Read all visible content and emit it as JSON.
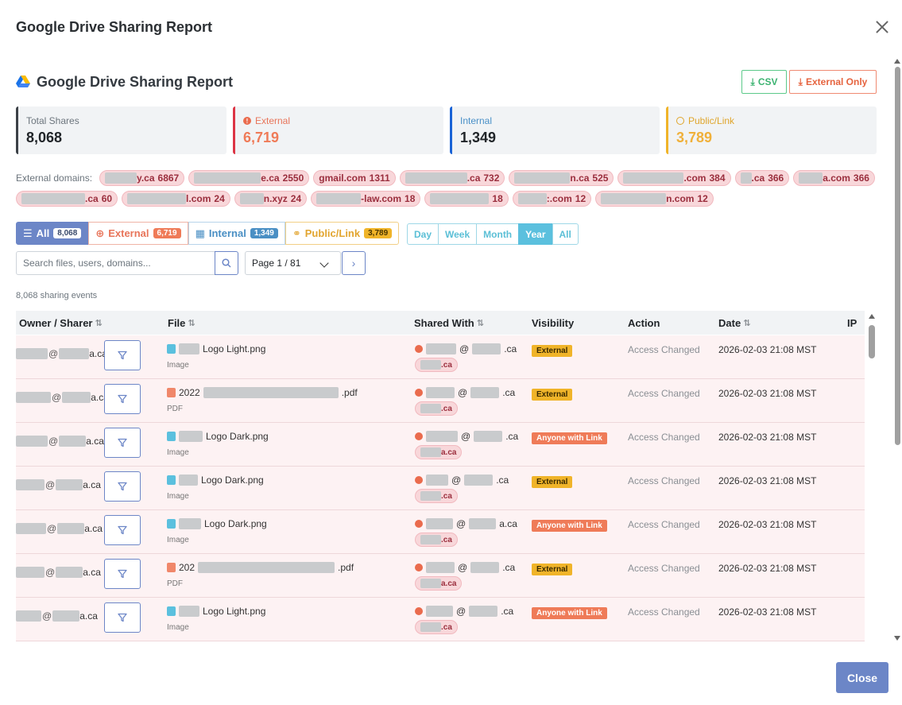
{
  "modal": {
    "title": "Google Drive Sharing Report",
    "close_label": "Close"
  },
  "report": {
    "title": "Google Drive Sharing Report"
  },
  "export": {
    "csv_label": "CSV",
    "external_only_label": "External Only"
  },
  "stats": {
    "total": {
      "label": "Total Shares",
      "value": "8,068"
    },
    "external": {
      "label": "External",
      "value": "6,719"
    },
    "internal": {
      "label": "Internal",
      "value": "1,349"
    },
    "public": {
      "label": "Public/Link",
      "value": "3,789"
    }
  },
  "domains": {
    "label": "External domains:",
    "row1": [
      {
        "suffix": "y.ca",
        "count": "6867",
        "blur": 40
      },
      {
        "suffix": "e.ca",
        "count": "2550",
        "blur": 84
      },
      {
        "suffix": "gmail.com",
        "count": "1311",
        "blur": 0
      },
      {
        "suffix": ".ca",
        "count": "732",
        "blur": 78
      },
      {
        "suffix": "n.ca",
        "count": "525",
        "blur": 70
      },
      {
        "suffix": ".com",
        "count": "384",
        "blur": 76
      },
      {
        "suffix": ".ca",
        "count": "366",
        "blur": 14
      },
      {
        "suffix": "a.com",
        "count": "366",
        "blur": 30
      }
    ],
    "row2": [
      {
        "suffix": ".ca",
        "count": "60",
        "blur": 80
      },
      {
        "suffix": "l.com",
        "count": "24",
        "blur": 74
      },
      {
        "suffix": "n.xyz",
        "count": "24",
        "blur": 30
      },
      {
        "suffix": "-law.com",
        "count": "18",
        "blur": 56
      },
      {
        "suffix": "",
        "count": "18",
        "blur": 74
      },
      {
        "suffix": ":.com",
        "count": "12",
        "blur": 36
      },
      {
        "suffix": "n.com",
        "count": "12",
        "blur": 82
      }
    ]
  },
  "filters": {
    "all": {
      "label": "All",
      "count": "8,068"
    },
    "external": {
      "label": "External",
      "count": "6,719"
    },
    "internal": {
      "label": "Internal",
      "count": "1,349"
    },
    "public": {
      "label": "Public/Link",
      "count": "3,789"
    }
  },
  "periods": [
    "Day",
    "Week",
    "Month",
    "Year",
    "All"
  ],
  "active_period": "Year",
  "search": {
    "placeholder": "Search files, users, domains..."
  },
  "pagination": {
    "label": "Page 1 / 81"
  },
  "events_label": "8,068 sharing events",
  "table": {
    "columns": {
      "owner": "Owner / Sharer",
      "file": "File",
      "shared_with": "Shared With",
      "visibility": "Visibility",
      "action": "Action",
      "date": "Date",
      "ip": "IP"
    },
    "rows": [
      {
        "owner_domain": "a.ca",
        "file_name": "Logo Light.png",
        "file_prefix": "",
        "file_kind": "img",
        "file_type": "Image",
        "shared_domain": ".ca",
        "chip": ".ca",
        "visibility": "External",
        "vis_kind": "ext",
        "action": "Access Changed",
        "date": "2026-02-03 21:08 MST"
      },
      {
        "owner_domain": "a.ca",
        "file_name": ".pdf",
        "file_prefix": "2022",
        "file_kind": "pdf",
        "file_type": "PDF",
        "shared_domain": ".ca",
        "chip": ".ca",
        "visibility": "External",
        "vis_kind": "ext",
        "action": "Access Changed",
        "date": "2026-02-03 21:08 MST"
      },
      {
        "owner_domain": "a.ca",
        "file_name": "Logo Dark.png",
        "file_prefix": "",
        "file_kind": "img",
        "file_type": "Image",
        "shared_domain": ".ca",
        "chip": "a.ca",
        "visibility": "Anyone with Link",
        "vis_kind": "link",
        "action": "Access Changed",
        "date": "2026-02-03 21:08 MST"
      },
      {
        "owner_domain": "a.ca",
        "file_name": "Logo Dark.png",
        "file_prefix": "",
        "file_kind": "img",
        "file_type": "Image",
        "shared_domain": ".ca",
        "chip": ".ca",
        "visibility": "External",
        "vis_kind": "ext",
        "action": "Access Changed",
        "date": "2026-02-03 21:08 MST"
      },
      {
        "owner_domain": "a.ca",
        "file_name": "Logo Dark.png",
        "file_prefix": "",
        "file_kind": "img",
        "file_type": "Image",
        "shared_domain": "a.ca",
        "chip": ".ca",
        "visibility": "Anyone with Link",
        "vis_kind": "link",
        "action": "Access Changed",
        "date": "2026-02-03 21:08 MST"
      },
      {
        "owner_domain": "a.ca",
        "file_name": ".pdf",
        "file_prefix": "202",
        "file_kind": "pdf",
        "file_type": "PDF",
        "shared_domain": ".ca",
        "chip": "a.ca",
        "visibility": "External",
        "vis_kind": "ext",
        "action": "Access Changed",
        "date": "2026-02-03 21:08 MST"
      },
      {
        "owner_domain": "a.ca",
        "file_name": "Logo Light.png",
        "file_prefix": "",
        "file_kind": "img",
        "file_type": "Image",
        "shared_domain": ".ca",
        "chip": ".ca",
        "visibility": "Anyone with Link",
        "vis_kind": "link",
        "action": "Access Changed",
        "date": "2026-02-03 21:08 MST"
      }
    ]
  }
}
